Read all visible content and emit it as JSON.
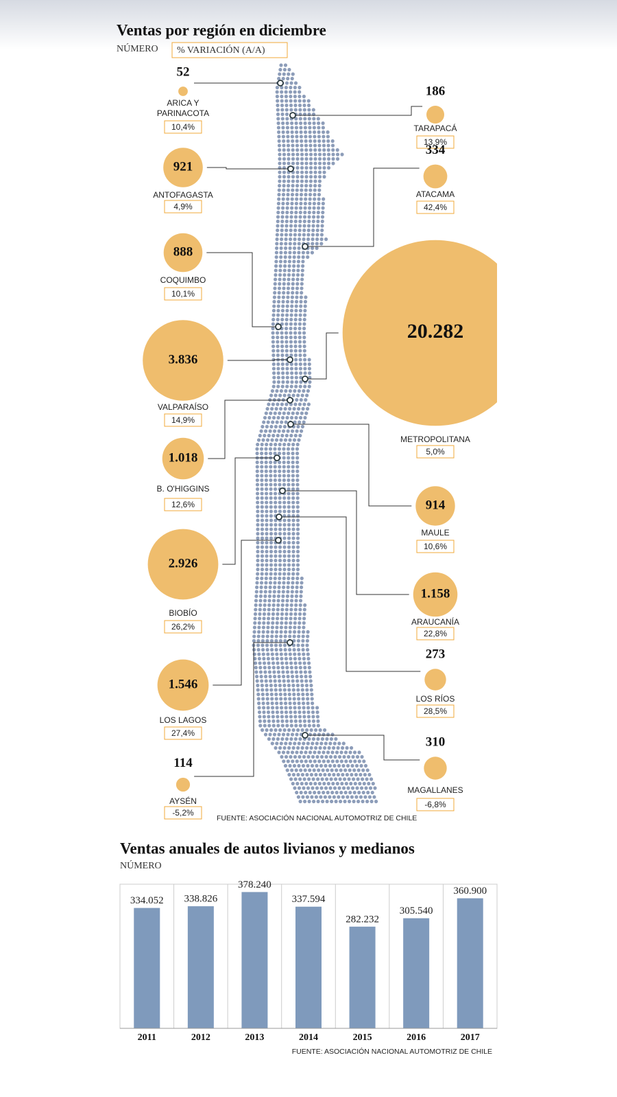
{
  "chart_data": [
    {
      "type": "bubble",
      "title": "Ventas por región en diciembre",
      "categories": [
        "ARICA Y PARINACOTA",
        "TARAPACÁ",
        "ANTOFAGASTA",
        "ATACAMA",
        "COQUIMBO",
        "VALPARAÍSO",
        "METROPOLITANA",
        "B. O'HIGGINS",
        "MAULE",
        "BIOBÍO",
        "ARAUCANÍA",
        "LOS RÍOS",
        "LOS LAGOS",
        "AYSÉN",
        "MAGALLANES"
      ],
      "series": [
        {
          "name": "NÚMERO",
          "color": "#efbd6d",
          "values": [
            52,
            186,
            921,
            334,
            888,
            3836,
            20282,
            1018,
            914,
            2926,
            1158,
            273,
            1546,
            114,
            310
          ],
          "value_labels": [
            "52",
            "186",
            "921",
            "334",
            "888",
            "3.836",
            "20.282",
            "1.018",
            "914",
            "2.926",
            "1.158",
            "273",
            "1.546",
            "114",
            "310"
          ]
        },
        {
          "name": "% VARIACIÓN (A/A)",
          "color": "#f0a838",
          "values": [
            10.4,
            13.9,
            4.9,
            42.4,
            10.1,
            14.9,
            5.0,
            12.6,
            10.6,
            26.2,
            22.8,
            28.5,
            27.4,
            -5.2,
            -6.8
          ],
          "value_labels": [
            "10,4%",
            "13,9%",
            "4,9%",
            "42,4%",
            "10,1%",
            "14,9%",
            "5,0%",
            "12,6%",
            "10,6%",
            "26,2%",
            "22,8%",
            "28,5%",
            "27,4%",
            "-5,2%",
            "-6,8%"
          ]
        }
      ],
      "source": "FUENTE: ASOCIACIÓN NACIONAL AUTOMOTRIZ DE CHILE"
    },
    {
      "type": "bar",
      "title": "Ventas anuales de autos livianos y medianos",
      "subtitle": "NÚMERO",
      "categories": [
        "2011",
        "2012",
        "2013",
        "2014",
        "2015",
        "2016",
        "2017"
      ],
      "values": [
        334052,
        338826,
        378240,
        337594,
        282232,
        305540,
        360900
      ],
      "value_labels": [
        "334.052",
        "338.826",
        "378.240",
        "337.594",
        "282.232",
        "305.540",
        "360.900"
      ],
      "color": "#7f9abc",
      "ylim": [
        0,
        400000
      ],
      "source": "FUENTE: ASOCIACIÓN NACIONAL AUTOMOTRIZ DE CHILE"
    }
  ]
}
